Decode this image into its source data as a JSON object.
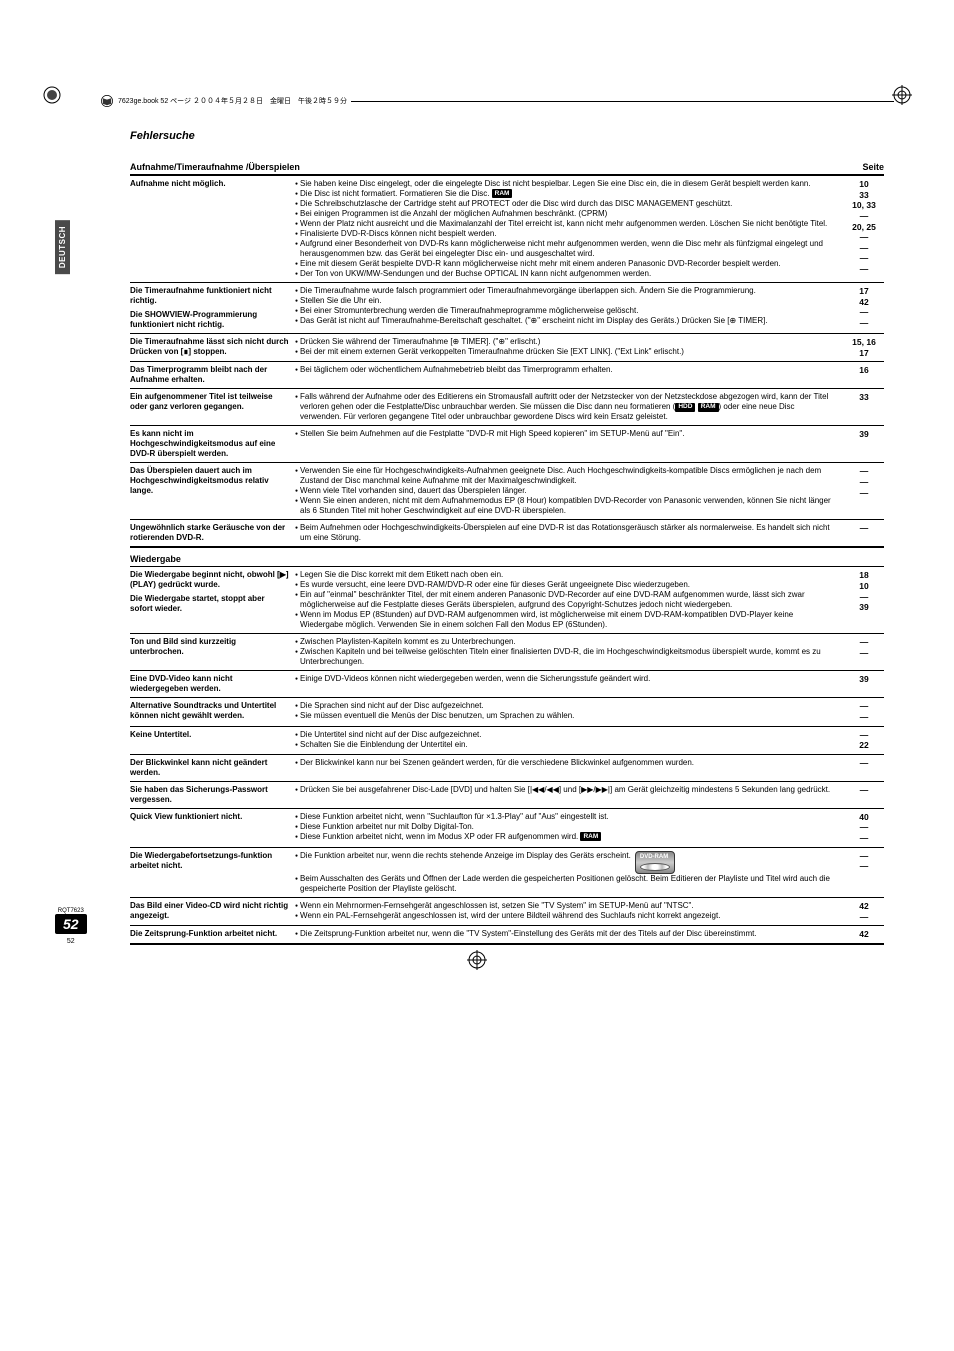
{
  "meta": {
    "top_bar_text": "7623ge.book  52 ページ  ２００４年５月２８日　金曜日　午後２時５９分",
    "section_title": "Fehlersuche",
    "side_tab": "DEUTSCH",
    "rqt": "RQT7623",
    "page_big": "52",
    "page_small": "52"
  },
  "headers": {
    "h1": "Aufnahme/Timeraufnahme /Überspielen",
    "h2": "Wiedergabe",
    "page_col": "Seite"
  },
  "tags": {
    "ram": "RAM",
    "hdd": "HDD"
  },
  "section1": [
    {
      "problem": "Aufnahme nicht möglich.",
      "solutions": [
        {
          "t": "Sie haben keine Disc eingelegt, oder die eingelegte Disc ist nicht bespielbar. Legen Sie eine Disc ein, die in diesem Gerät bespielt werden kann.",
          "p": "10"
        },
        {
          "t": "Die Disc ist nicht formatiert. Formatieren Sie die Disc.",
          "p": "33",
          "tag": "ram"
        },
        {
          "t": "Die Schreibschutzlasche der Cartridge steht auf PROTECT oder die Disc wird durch das DISC MANAGEMENT geschützt.",
          "p": "10, 33"
        },
        {
          "t": "Bei einigen Programmen ist die Anzahl der möglichen Aufnahmen beschränkt. (CPRM)",
          "p": "—"
        },
        {
          "t": "Wenn der Platz nicht ausreicht und die Maximalanzahl der Titel erreicht ist, kann nicht mehr aufgenommen werden. Löschen Sie nicht benötigte Titel.",
          "p": "20, 25"
        },
        {
          "t": "Finalisierte DVD-R-Discs können nicht bespielt werden.",
          "p": "—"
        },
        {
          "t": "Aufgrund einer Besonderheit von DVD-Rs kann möglicherweise nicht mehr aufgenommen werden, wenn die Disc mehr als fünfzigmal eingelegt und herausgenommen bzw. das Gerät bei eingelegter Disc ein- und ausgeschaltet wird.",
          "p": "—"
        },
        {
          "t": "Eine mit diesem Gerät bespielte DVD-R kann möglicherweise nicht mehr mit einem anderen Panasonic DVD-Recorder bespielt werden.",
          "p": "—"
        },
        {
          "t": "Der Ton von UKW/MW-Sendungen und der Buchse OPTICAL IN kann nicht aufgenommen werden.",
          "p": "—"
        }
      ]
    },
    {
      "problem_multi": [
        "Die Timeraufnahme funktioniert nicht richtig.",
        "Die SHOWVIEW-Programmierung funktioniert nicht richtig."
      ],
      "solutions": [
        {
          "t": "Die Timeraufnahme wurde falsch programmiert oder Timeraufnahmevorgänge überlappen sich. Ändern Sie die Programmierung.",
          "p": "17"
        },
        {
          "t": "Stellen Sie die Uhr ein.",
          "p": "42"
        },
        {
          "t": "Bei einer Stromunterbrechung werden die Timeraufnahmeprogramme möglicherweise gelöscht.",
          "p": "—"
        },
        {
          "t": "Das Gerät ist nicht auf Timeraufnahme-Bereitschaft geschaltet. (\"⊕\" erscheint nicht im Display des Geräts.) Drücken Sie [⊕ TIMER].",
          "p": "—"
        }
      ]
    },
    {
      "problem": "Die Timeraufnahme lässt sich nicht durch Drücken von [∎] stoppen.",
      "solutions": [
        {
          "t": "Drücken Sie während der Timeraufnahme [⊕ TIMER]. (\"⊕\" erlischt.)",
          "p": "15, 16"
        },
        {
          "t": "Bei der mit einem externen Gerät verkoppelten Timeraufnahme drücken Sie [EXT LINK]. (\"Ext Link\" erlischt.)",
          "p": "17"
        }
      ]
    },
    {
      "problem": "Das Timerprogramm bleibt nach der Aufnahme erhalten.",
      "solutions": [
        {
          "t": "Bei täglichem oder wöchentlichem Aufnahmebetrieb bleibt das Timerprogramm erhalten.",
          "p": "16"
        }
      ]
    },
    {
      "problem": "Ein aufgenommener Titel ist teilweise oder ganz verloren gegangen.",
      "solutions": [
        {
          "t": "Falls während der Aufnahme oder des Editierens ein Stromausfall auftritt oder der Netzstecker von der Netzsteckdose abgezogen wird, kann der Titel verloren gehen oder die Festplatte/Disc unbrauchbar werden. Sie müssen die Disc dann neu formatieren (<span class=\"tag\">HDD</span> <span class=\"tag\">RAM</span>) oder eine neue Disc verwenden. Für verloren gegangene Titel oder unbrauchbar gewordene Discs wird kein Ersatz geleistet.",
          "p": "33",
          "html": true
        }
      ]
    },
    {
      "problem": "Es kann nicht im Hochgeschwindigkeitsmodus auf eine DVD-R überspielt werden.",
      "solutions": [
        {
          "t": "Stellen Sie beim Aufnehmen auf die Festplatte \"DVD-R mit High Speed kopieren\" im SETUP-Menü auf \"Ein\".",
          "p": "39"
        }
      ]
    },
    {
      "problem": "Das Überspielen dauert auch im Hochgeschwindigkeitsmodus relativ lange.",
      "solutions": [
        {
          "t": "Verwenden Sie eine für Hochgeschwindigkeits-Aufnahmen geeignete Disc. Auch Hochgeschwindigkeits-kompatible Discs ermöglichen je nach dem Zustand der Disc manchmal keine Aufnahme mit der Maximalgeschwindigkeit.",
          "p": "—"
        },
        {
          "t": "Wenn viele Titel vorhanden sind, dauert das Überspielen länger.",
          "p": "—"
        },
        {
          "t": "Wenn Sie einen anderen, nicht mit dem Aufnahmemodus EP (8 Hour) kompatiblen DVD-Recorder von Panasonic verwenden, können Sie nicht länger als 6 Stunden Titel mit hoher Geschwindigkeit auf eine DVD-R überspielen.",
          "p": "—"
        }
      ]
    },
    {
      "problem": "Ungewöhnlich starke Geräusche von der rotierenden DVD-R.",
      "solutions": [
        {
          "t": "Beim Aufnehmen oder Hochgeschwindigkeits-Überspielen auf eine DVD-R ist das Rotationsgeräusch stärker als normalerweise. Es handelt sich nicht um eine Störung.",
          "p": "—"
        }
      ]
    }
  ],
  "section2": [
    {
      "problem_multi": [
        "Die Wiedergabe beginnt nicht, obwohl [▶] (PLAY) gedrückt wurde.",
        "Die Wiedergabe startet, stoppt aber sofort wieder."
      ],
      "solutions": [
        {
          "t": "Legen Sie die Disc korrekt mit dem Etikett nach oben ein.",
          "p": "18"
        },
        {
          "t": "Es wurde versucht, eine leere DVD-RAM/DVD-R oder eine für dieses Gerät ungeeignete Disc wiederzugeben.",
          "p": "10"
        },
        {
          "t": "Ein auf \"einmal\" beschränkter Titel, der mit einem anderen Panasonic DVD-Recorder auf eine DVD-RAM aufgenommen wurde, lässt sich zwar möglicherweise auf die Festplatte dieses Geräts überspielen, aufgrund des Copyright-Schutzes jedoch nicht wiedergeben.",
          "p": "—"
        },
        {
          "t": "Wenn im Modus EP (8Stunden) auf DVD-RAM aufgenommen wird, ist möglicherweise mit einem DVD-RAM-kompatiblen DVD-Player keine Wiedergabe möglich. Verwenden Sie in einem solchen Fall den Modus EP (6Stunden).",
          "p": "39"
        }
      ]
    },
    {
      "problem": "Ton und Bild sind kurzzeitig unterbrochen.",
      "solutions": [
        {
          "t": "Zwischen Playlisten-Kapiteln kommt es zu Unterbrechungen.",
          "p": "—"
        },
        {
          "t": "Zwischen Kapiteln und bei teilweise gelöschten Titeln einer finalisierten DVD-R, die im Hochgeschwindigkeitsmodus überspielt wurde, kommt es zu Unterbrechungen.",
          "p": "—"
        }
      ]
    },
    {
      "problem": "Eine DVD-Video kann nicht wiedergegeben werden.",
      "solutions": [
        {
          "t": "Einige DVD-Videos können nicht wiedergegeben werden, wenn die Sicherungsstufe geändert wird.",
          "p": "39"
        }
      ]
    },
    {
      "problem": "Alternative Soundtracks und Untertitel können nicht gewählt werden.",
      "solutions": [
        {
          "t": "Die Sprachen sind nicht auf der Disc aufgezeichnet.",
          "p": "—"
        },
        {
          "t": "Sie müssen eventuell die Menüs der Disc benutzen, um Sprachen zu wählen.",
          "p": "—"
        }
      ]
    },
    {
      "problem": "Keine Untertitel.",
      "solutions": [
        {
          "t": "Die Untertitel sind nicht auf der Disc aufgezeichnet.",
          "p": "—"
        },
        {
          "t": "Schalten Sie die Einblendung der Untertitel ein.",
          "p": "22"
        }
      ]
    },
    {
      "problem": "Der Blickwinkel kann nicht geändert werden.",
      "solutions": [
        {
          "t": "Der Blickwinkel kann nur bei Szenen geändert werden, für die verschiedene Blickwinkel aufgenommen wurden.",
          "p": "—"
        }
      ]
    },
    {
      "problem": "Sie haben das Sicherungs-Passwort vergessen.",
      "solutions": [
        {
          "t": "Drücken Sie bei ausgefahrener Disc-Lade [DVD] und halten Sie [|◀◀/◀◀] und [▶▶/▶▶|] am Gerät gleichzeitig mindestens 5 Sekunden lang gedrückt.",
          "p": "—"
        }
      ]
    },
    {
      "problem": "Quick View funktioniert nicht.",
      "solutions": [
        {
          "t": "Diese Funktion arbeitet nicht, wenn \"Suchlaufton für ×1.3-Play\" auf \"Aus\" eingestellt ist.",
          "p": "40"
        },
        {
          "t": "Diese Funktion arbeitet nur mit Dolby Digital-Ton.",
          "p": "—"
        },
        {
          "t": "Diese Funktion arbeitet nicht, wenn im Modus XP oder FR aufgenommen wird. <span class=\"tag\">RAM</span>",
          "p": "—",
          "html": true
        }
      ]
    },
    {
      "problem": "Die Wiedergabefortsetzungs-funktion arbeitet nicht.",
      "badge": true,
      "solutions": [
        {
          "t": "Die Funktion arbeitet nur, wenn die rechts stehende Anzeige im Display des Geräts erscheint.",
          "p": "—"
        },
        {
          "t": "Beim Ausschalten des Geräts und Öffnen der Lade werden die gespeicherten Positionen gelöscht. Beim Editieren der Playliste und Titel wird auch die gespeicherte Position der Playliste gelöscht.",
          "p": "—"
        }
      ]
    },
    {
      "problem": "Das Bild einer Video-CD wird nicht richtig angezeigt.",
      "solutions": [
        {
          "t": "Wenn ein Mehrnormen-Fernsehgerät angeschlossen ist, setzen Sie \"TV System\" im SETUP-Menü auf \"NTSC\".",
          "p": "42"
        },
        {
          "t": "Wenn ein PAL-Fernsehgerät angeschlossen ist, wird der untere Bildteil während des Suchlaufs nicht korrekt angezeigt.",
          "p": "—"
        }
      ]
    },
    {
      "problem": "Die Zeitsprung-Funktion arbeitet nicht.",
      "solutions": [
        {
          "t": "Die Zeitsprung-Funktion arbeitet nur, wenn die \"TV System\"-Einstellung des Geräts mit der des Titels auf der Disc übereinstimmt.",
          "p": "42"
        }
      ]
    }
  ]
}
